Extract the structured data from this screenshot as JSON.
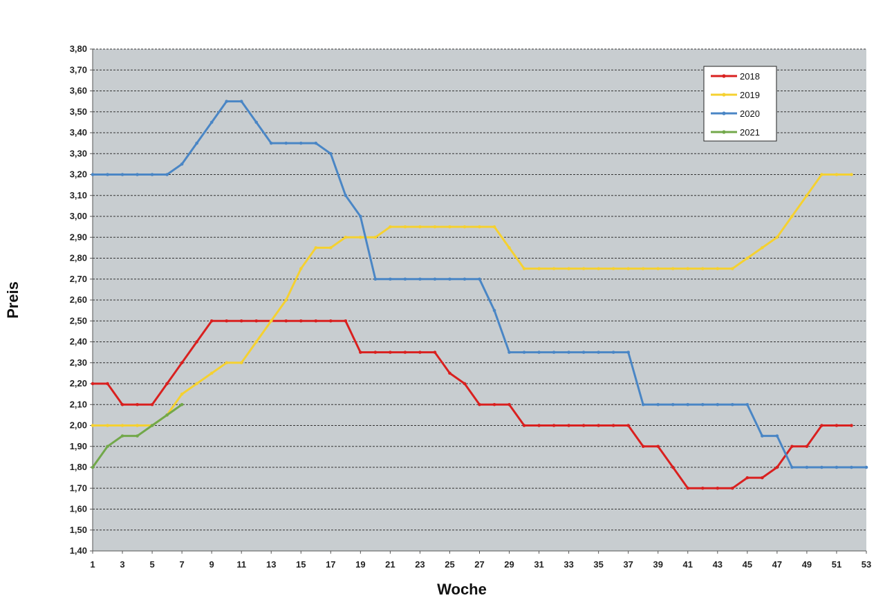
{
  "chart_data": {
    "type": "line",
    "xlabel": "Woche",
    "ylabel": "Preis",
    "xlim": [
      1,
      53
    ],
    "ylim": [
      1.4,
      3.8
    ],
    "x_ticks": [
      "1",
      "3",
      "5",
      "7",
      "9",
      "11",
      "13",
      "15",
      "17",
      "19",
      "21",
      "23",
      "25",
      "27",
      "29",
      "31",
      "33",
      "35",
      "37",
      "39",
      "41",
      "43",
      "45",
      "47",
      "49",
      "51",
      "53"
    ],
    "y_ticks": [
      "1,40",
      "1,50",
      "1,60",
      "1,70",
      "1,80",
      "1,90",
      "2,00",
      "2,10",
      "2,20",
      "2,30",
      "2,40",
      "2,50",
      "2,60",
      "2,70",
      "2,80",
      "2,90",
      "3,00",
      "3,10",
      "3,20",
      "3,30",
      "3,40",
      "3,50",
      "3,60",
      "3,70",
      "3,80"
    ],
    "grid": "horizontal dashed",
    "plot_background": "#c8cdd0",
    "legend_position": "top-right",
    "series": [
      {
        "name": "2018",
        "color": "#d9201f",
        "x": [
          1,
          2,
          3,
          4,
          5,
          6,
          7,
          8,
          9,
          10,
          11,
          12,
          13,
          14,
          15,
          16,
          17,
          18,
          19,
          20,
          21,
          22,
          23,
          24,
          25,
          26,
          27,
          28,
          29,
          30,
          31,
          32,
          33,
          34,
          35,
          36,
          37,
          38,
          39,
          40,
          41,
          42,
          43,
          44,
          45,
          46,
          47,
          48,
          49,
          50,
          51,
          52
        ],
        "y": [
          2.2,
          2.2,
          2.1,
          2.1,
          2.1,
          2.2,
          2.3,
          2.4,
          2.5,
          2.5,
          2.5,
          2.5,
          2.5,
          2.5,
          2.5,
          2.5,
          2.5,
          2.5,
          2.35,
          2.35,
          2.35,
          2.35,
          2.35,
          2.35,
          2.25,
          2.2,
          2.1,
          2.1,
          2.1,
          2.0,
          2.0,
          2.0,
          2.0,
          2.0,
          2.0,
          2.0,
          2.0,
          1.9,
          1.9,
          1.8,
          1.7,
          1.7,
          1.7,
          1.7,
          1.75,
          1.75,
          1.8,
          1.9,
          1.9,
          2.0,
          2.0,
          2.0
        ]
      },
      {
        "name": "2019",
        "color": "#f5d130",
        "x": [
          1,
          2,
          3,
          4,
          5,
          6,
          7,
          8,
          9,
          10,
          11,
          12,
          13,
          14,
          15,
          16,
          17,
          18,
          19,
          20,
          21,
          22,
          23,
          24,
          25,
          26,
          27,
          28,
          29,
          30,
          31,
          32,
          33,
          34,
          35,
          36,
          37,
          38,
          39,
          40,
          41,
          42,
          43,
          44,
          45,
          46,
          47,
          48,
          49,
          50,
          51,
          52
        ],
        "y": [
          2.0,
          2.0,
          2.0,
          2.0,
          2.0,
          2.05,
          2.15,
          2.2,
          2.25,
          2.3,
          2.3,
          2.4,
          2.5,
          2.6,
          2.75,
          2.85,
          2.85,
          2.9,
          2.9,
          2.9,
          2.95,
          2.95,
          2.95,
          2.95,
          2.95,
          2.95,
          2.95,
          2.95,
          2.85,
          2.75,
          2.75,
          2.75,
          2.75,
          2.75,
          2.75,
          2.75,
          2.75,
          2.75,
          2.75,
          2.75,
          2.75,
          2.75,
          2.75,
          2.75,
          2.8,
          2.85,
          2.9,
          3.0,
          3.1,
          3.2,
          3.2,
          3.2
        ]
      },
      {
        "name": "2020",
        "color": "#4a86c5",
        "x": [
          1,
          2,
          3,
          4,
          5,
          6,
          7,
          8,
          9,
          10,
          11,
          12,
          13,
          14,
          15,
          16,
          17,
          18,
          19,
          20,
          21,
          22,
          23,
          24,
          25,
          26,
          27,
          28,
          29,
          30,
          31,
          32,
          33,
          34,
          35,
          36,
          37,
          38,
          39,
          40,
          41,
          42,
          43,
          44,
          45,
          46,
          47,
          48,
          49,
          50,
          51,
          52,
          53
        ],
        "y": [
          3.2,
          3.2,
          3.2,
          3.2,
          3.2,
          3.2,
          3.25,
          3.35,
          3.45,
          3.55,
          3.55,
          3.45,
          3.35,
          3.35,
          3.35,
          3.35,
          3.3,
          3.1,
          3.0,
          2.7,
          2.7,
          2.7,
          2.7,
          2.7,
          2.7,
          2.7,
          2.7,
          2.55,
          2.35,
          2.35,
          2.35,
          2.35,
          2.35,
          2.35,
          2.35,
          2.35,
          2.35,
          2.1,
          2.1,
          2.1,
          2.1,
          2.1,
          2.1,
          2.1,
          2.1,
          1.95,
          1.95,
          1.8,
          1.8,
          1.8,
          1.8,
          1.8,
          1.8
        ]
      },
      {
        "name": "2021",
        "color": "#72a84a",
        "x": [
          1,
          2,
          3,
          4,
          5,
          6,
          7
        ],
        "y": [
          1.8,
          1.9,
          1.95,
          1.95,
          2.0,
          2.05,
          2.1
        ]
      }
    ]
  }
}
